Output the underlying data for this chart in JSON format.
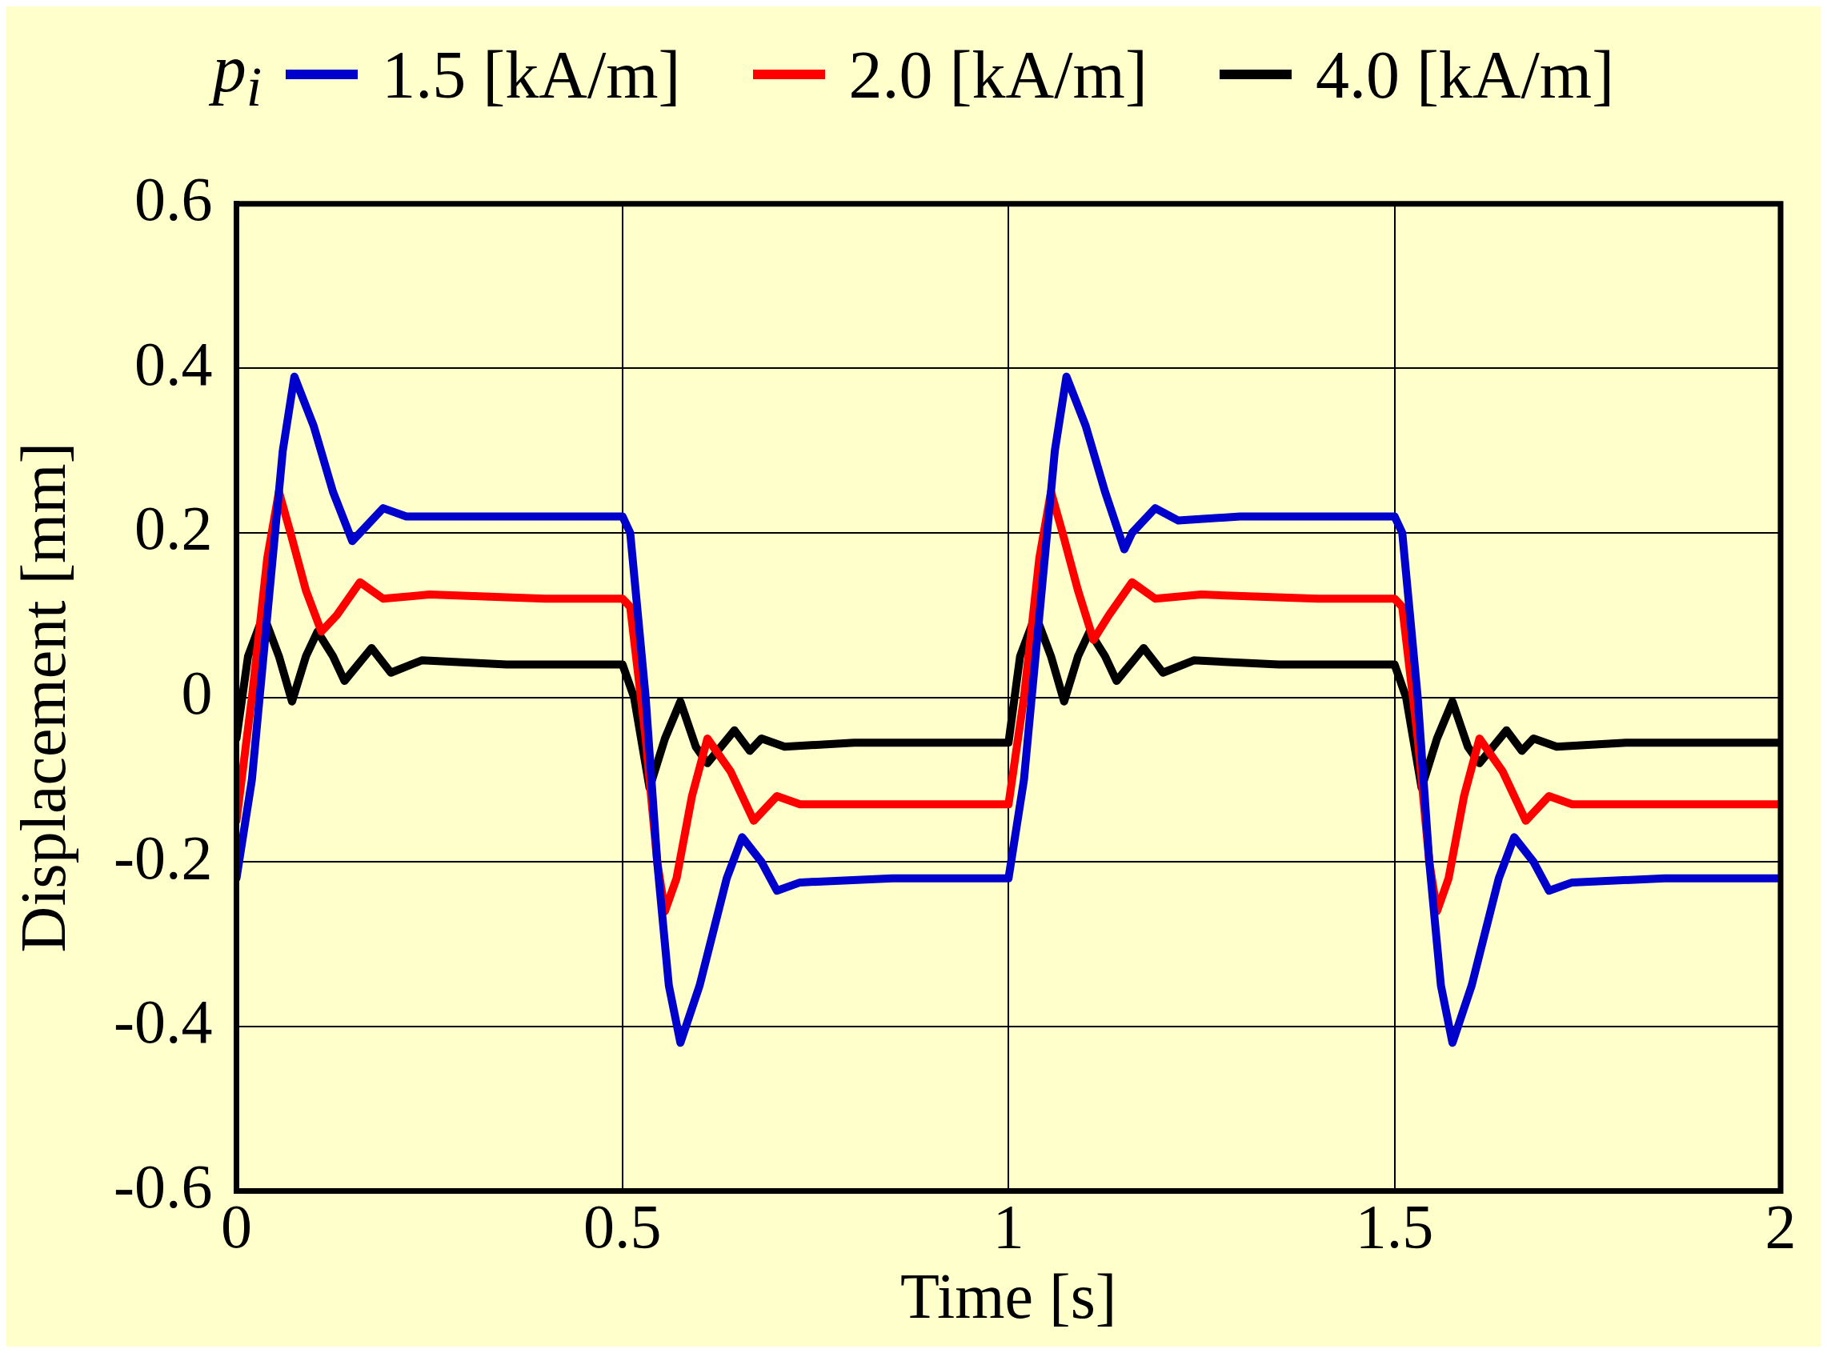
{
  "chart_data": {
    "type": "line",
    "xlabel": "Time [s]",
    "ylabel": "Displacement [mm]",
    "legend_title": "p$_{i}$",
    "legend": "top",
    "grid": true,
    "xlim": [
      0,
      2
    ],
    "xticks": [
      0,
      0.5,
      1,
      1.5,
      2
    ],
    "ylim": [
      -0.6,
      0.6
    ],
    "yticks": [
      -0.6,
      -0.4,
      -0.2,
      0,
      0.2,
      0.4,
      0.6
    ],
    "series": [
      {
        "name": "1.5 [kA/m]",
        "color": "#0000cc",
        "x": [
          0,
          0.02,
          0.04,
          0.06,
          0.075,
          0.1,
          0.125,
          0.15,
          0.16,
          0.19,
          0.22,
          0.3,
          0.4,
          0.5,
          0.51,
          0.53,
          0.545,
          0.56,
          0.575,
          0.6,
          0.635,
          0.655,
          0.68,
          0.7,
          0.73,
          0.85,
          1.0,
          1.02,
          1.04,
          1.06,
          1.075,
          1.1,
          1.125,
          1.15,
          1.16,
          1.19,
          1.22,
          1.3,
          1.4,
          1.5,
          1.51,
          1.53,
          1.545,
          1.56,
          1.575,
          1.6,
          1.635,
          1.655,
          1.68,
          1.7,
          1.73,
          1.85,
          2.0
        ],
        "values": [
          -0.22,
          -0.1,
          0.1,
          0.3,
          0.39,
          0.33,
          0.25,
          0.19,
          0.2,
          0.23,
          0.22,
          0.22,
          0.22,
          0.22,
          0.2,
          0.0,
          -0.2,
          -0.35,
          -0.42,
          -0.35,
          -0.22,
          -0.17,
          -0.2,
          -0.235,
          -0.225,
          -0.22,
          -0.22,
          -0.1,
          0.1,
          0.3,
          0.39,
          0.33,
          0.25,
          0.18,
          0.2,
          0.23,
          0.215,
          0.22,
          0.22,
          0.22,
          0.2,
          0.0,
          -0.2,
          -0.35,
          -0.42,
          -0.35,
          -0.22,
          -0.17,
          -0.2,
          -0.235,
          -0.225,
          -0.22,
          -0.22
        ]
      },
      {
        "name": "2.0 [kA/m]",
        "color": "#ff0000",
        "x": [
          0,
          0.02,
          0.04,
          0.055,
          0.07,
          0.09,
          0.11,
          0.13,
          0.16,
          0.19,
          0.25,
          0.4,
          0.5,
          0.51,
          0.53,
          0.545,
          0.555,
          0.57,
          0.59,
          0.61,
          0.64,
          0.67,
          0.7,
          0.73,
          0.85,
          1.0,
          1.02,
          1.04,
          1.055,
          1.07,
          1.09,
          1.11,
          1.13,
          1.16,
          1.19,
          1.25,
          1.4,
          1.5,
          1.51,
          1.53,
          1.545,
          1.555,
          1.57,
          1.59,
          1.61,
          1.64,
          1.67,
          1.7,
          1.73,
          1.85,
          2.0
        ],
        "values": [
          -0.15,
          0.0,
          0.17,
          0.25,
          0.2,
          0.13,
          0.08,
          0.1,
          0.14,
          0.12,
          0.125,
          0.12,
          0.12,
          0.11,
          -0.05,
          -0.2,
          -0.26,
          -0.22,
          -0.12,
          -0.05,
          -0.09,
          -0.15,
          -0.12,
          -0.13,
          -0.13,
          -0.13,
          0.0,
          0.17,
          0.25,
          0.2,
          0.13,
          0.07,
          0.1,
          0.14,
          0.12,
          0.125,
          0.12,
          0.12,
          0.11,
          -0.05,
          -0.2,
          -0.26,
          -0.22,
          -0.12,
          -0.05,
          -0.09,
          -0.15,
          -0.12,
          -0.13,
          -0.13,
          -0.13
        ]
      },
      {
        "name": "4.0 [kA/m]",
        "color": "#000000",
        "x": [
          0,
          0.015,
          0.035,
          0.055,
          0.072,
          0.09,
          0.105,
          0.125,
          0.14,
          0.175,
          0.2,
          0.24,
          0.35,
          0.5,
          0.515,
          0.535,
          0.555,
          0.575,
          0.595,
          0.61,
          0.645,
          0.665,
          0.68,
          0.71,
          0.8,
          1.0,
          1.015,
          1.035,
          1.055,
          1.072,
          1.09,
          1.105,
          1.125,
          1.14,
          1.175,
          1.2,
          1.24,
          1.35,
          1.5,
          1.515,
          1.535,
          1.555,
          1.575,
          1.595,
          1.61,
          1.645,
          1.665,
          1.68,
          1.71,
          1.8,
          2.0
        ],
        "values": [
          -0.05,
          0.05,
          0.1,
          0.05,
          -0.005,
          0.05,
          0.08,
          0.05,
          0.02,
          0.06,
          0.03,
          0.045,
          0.04,
          0.04,
          0.0,
          -0.11,
          -0.05,
          -0.005,
          -0.06,
          -0.08,
          -0.04,
          -0.065,
          -0.05,
          -0.06,
          -0.055,
          -0.055,
          0.05,
          0.1,
          0.05,
          -0.005,
          0.05,
          0.08,
          0.05,
          0.02,
          0.06,
          0.03,
          0.045,
          0.04,
          0.04,
          0.0,
          -0.11,
          -0.05,
          -0.005,
          -0.06,
          -0.08,
          -0.04,
          -0.065,
          -0.05,
          -0.06,
          -0.055,
          -0.055
        ]
      }
    ]
  }
}
